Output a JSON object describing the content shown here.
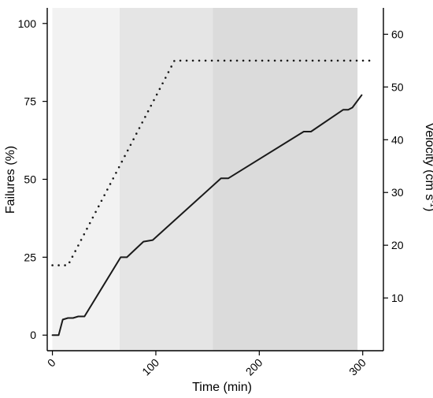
{
  "chart_data": {
    "type": "line",
    "xlabel": "Time (min)",
    "ylabel_left": "Failures (%)",
    "ylabel_right": "Velocity (cm s",
    "ylabel_right_sup": "-1",
    "ylabel_right_close": ")",
    "xlim": [
      -5,
      320
    ],
    "ylim_left": [
      -5,
      105
    ],
    "ylim_right": [
      0,
      65
    ],
    "x_ticks": [
      0,
      100,
      200,
      300
    ],
    "y_left_ticks": [
      0,
      25,
      50,
      75,
      100
    ],
    "y_right_ticks": [
      10,
      20,
      30,
      40,
      50,
      60
    ],
    "x_tick_labels": [
      "0",
      "100",
      "200",
      "300"
    ],
    "y_left_tick_labels": [
      "0",
      "25",
      "50",
      "75",
      "100"
    ],
    "y_right_tick_labels": [
      "10",
      "20",
      "30",
      "40",
      "50",
      "60"
    ],
    "bands": [
      {
        "x0": 0,
        "x1": 65,
        "color": "#f2f2f2"
      },
      {
        "x0": 65,
        "x1": 155,
        "color": "#e5e5e5"
      },
      {
        "x0": 155,
        "x1": 295,
        "color": "#dbdbdb"
      }
    ],
    "series": [
      {
        "axis": "left",
        "style": "solid",
        "color": "#1a1a1a",
        "x": [
          0,
          6,
          10,
          15,
          20,
          25,
          31,
          66,
          72,
          88,
          97,
          163,
          170,
          243,
          250,
          281,
          286,
          290,
          299
        ],
        "y": [
          0,
          0,
          5,
          5.5,
          5.5,
          6,
          6,
          25,
          25,
          30,
          30.5,
          50.3,
          50.3,
          65.3,
          65.3,
          72.3,
          72.3,
          73,
          77
        ]
      },
      {
        "axis": "right",
        "style": "dotted",
        "color": "#1a1a1a",
        "x": [
          0,
          15,
          118,
          310
        ],
        "y": [
          16.2,
          16.2,
          55,
          55
        ]
      }
    ]
  }
}
